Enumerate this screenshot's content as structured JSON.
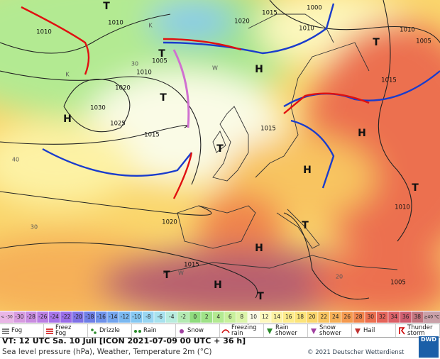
{
  "map": {
    "labels": [
      "H",
      "H",
      "H",
      "H",
      "H",
      "H",
      "T",
      "T",
      "T",
      "T",
      "T",
      "T",
      "T",
      "T",
      "T",
      "1010",
      "1010",
      "1005",
      "1010",
      "1020",
      "1030",
      "1025",
      "1015",
      "1020",
      "1015",
      "1010",
      "1005",
      "1015",
      "1015",
      "1020",
      "1015",
      "1000",
      "1010",
      "1010",
      "1005",
      "K",
      "K",
      "W",
      "W",
      "20",
      "30",
      "40",
      "30"
    ]
  },
  "scale": {
    "low": {
      "label": "< -30",
      "color": "#e9b6e6"
    },
    "cells": [
      -30,
      -28,
      -26,
      -24,
      -22,
      -20,
      -18,
      -16,
      -14,
      -12,
      -10,
      -8,
      -6,
      -4,
      -2,
      0,
      2,
      4,
      6,
      8,
      10,
      12,
      14,
      16,
      18,
      20,
      22,
      24,
      26,
      28,
      30,
      32,
      34,
      36,
      38
    ],
    "colors": [
      "#d79be0",
      "#c98ce0",
      "#bb7fe3",
      "#a874e8",
      "#9a6ee8",
      "#7f72e6",
      "#6f7fe6",
      "#6f92ea",
      "#74a5ee",
      "#7ab8f0",
      "#86c8f2",
      "#99d6f2",
      "#a8e2ee",
      "#b8ecde",
      "#b4eab2",
      "#8fdc7e",
      "#9fe288",
      "#b3ea92",
      "#c8f09c",
      "#dcf5aa",
      "#fafbe6",
      "#fdf8be",
      "#fdf2a4",
      "#fdec8c",
      "#fce47a",
      "#fad66c",
      "#f8c460",
      "#f6b058",
      "#f49a50",
      "#f0844c",
      "#ec7050",
      "#e5645a",
      "#dc6068",
      "#cf5e70",
      "#c2747e"
    ],
    "high": {
      "label": "≥40 °C",
      "color": "#c9a0a8"
    }
  },
  "legend": [
    "Fog",
    "Freez Fog",
    "Drizzle",
    "Rain",
    "Snow",
    "Freezing rain",
    "Rain shower",
    "Snow shower",
    "Hail",
    "Thunder storm"
  ],
  "footer": {
    "valid_time": "VT: 12 UTC Sa.  10 Juli [ICON 2021-07-09  00 UTC + 36 h]",
    "description": "Sea level pressure (hPa), Weather, Temperature 2m (°C)",
    "copyright": "© 2021 Deutscher Wetterdienst",
    "logo": "DWD"
  }
}
